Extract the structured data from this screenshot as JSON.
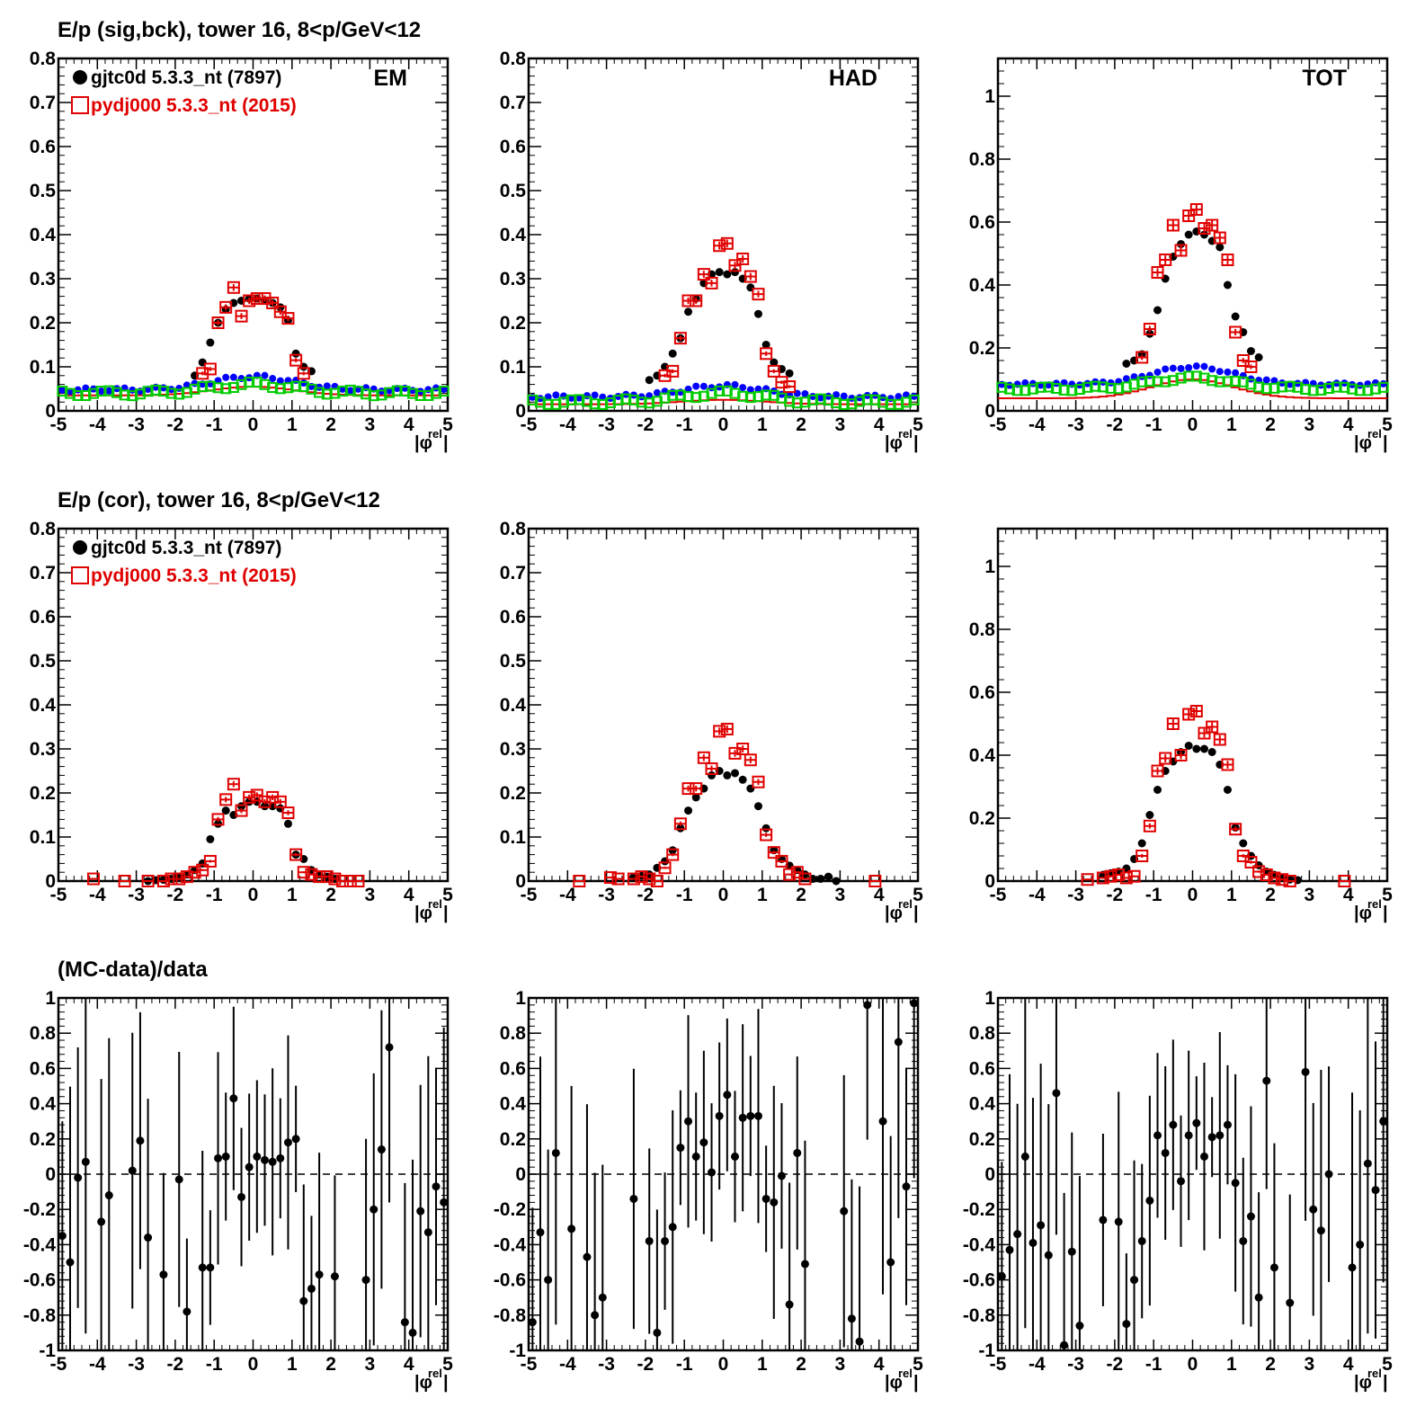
{
  "row_titles": {
    "r0": "E/p (sig,bck), tower 16,  8<p/GeV<12",
    "r1": "E/p (cor), tower 16,  8<p/GeV<12",
    "r2": "(MC-data)/data"
  },
  "legend": {
    "data_label": "gjtc0d 5.3.3_nt (7897)",
    "mc_label": "pydj000 5.3.3_nt (2015)"
  },
  "colors": {
    "data": "#000000",
    "mc": "#e00000",
    "background_data": "#0000ff",
    "background_mc": "#00cc00",
    "axis": "#000000"
  },
  "xlabel": "|φrel|",
  "chart_data": [
    {
      "id": "sb_em",
      "type": "scatter",
      "label": "EM",
      "xlim": [
        -5,
        5
      ],
      "ylim": [
        0,
        0.8
      ],
      "yticks": [
        0,
        0.1,
        0.2,
        0.3,
        0.4,
        0.5,
        0.6,
        0.7,
        0.8
      ],
      "xticks": [
        -5,
        -4,
        -3,
        -2,
        -1,
        0,
        1,
        2,
        3,
        4,
        5
      ],
      "series": [
        {
          "role": "data",
          "x": [
            -1.5,
            -1.3,
            -1.1,
            -0.9,
            -0.7,
            -0.5,
            -0.3,
            -0.1,
            0.1,
            0.3,
            0.5,
            0.7,
            0.9,
            1.1,
            1.3,
            1.5
          ],
          "y": [
            0.08,
            0.11,
            0.155,
            0.2,
            0.23,
            0.245,
            0.25,
            0.255,
            0.255,
            0.25,
            0.245,
            0.235,
            0.205,
            0.13,
            0.1,
            0.09
          ]
        },
        {
          "role": "mc",
          "x": [
            -1.3,
            -1.1,
            -0.9,
            -0.7,
            -0.5,
            -0.3,
            -0.1,
            0.1,
            0.3,
            0.5,
            0.7,
            0.9,
            1.1,
            1.3
          ],
          "y": [
            0.085,
            0.095,
            0.2,
            0.235,
            0.28,
            0.215,
            0.25,
            0.255,
            0.255,
            0.245,
            0.225,
            0.21,
            0.115,
            0.085
          ]
        }
      ]
    },
    {
      "id": "sb_had",
      "type": "scatter",
      "label": "HAD",
      "xlim": [
        -5,
        5
      ],
      "ylim": [
        0,
        0.8
      ],
      "yticks": [
        0,
        0.1,
        0.2,
        0.3,
        0.4,
        0.5,
        0.6,
        0.7,
        0.8
      ],
      "xticks": [
        -5,
        -4,
        -3,
        -2,
        -1,
        0,
        1,
        2,
        3,
        4,
        5
      ],
      "series": [
        {
          "role": "data",
          "x": [
            -1.9,
            -1.7,
            -1.5,
            -1.3,
            -1.1,
            -0.9,
            -0.7,
            -0.5,
            -0.3,
            -0.1,
            0.1,
            0.3,
            0.5,
            0.7,
            0.9,
            1.1,
            1.3,
            1.5,
            1.7
          ],
          "y": [
            0.07,
            0.08,
            0.1,
            0.13,
            0.165,
            0.225,
            0.255,
            0.29,
            0.31,
            0.315,
            0.31,
            0.315,
            0.3,
            0.28,
            0.22,
            0.15,
            0.11,
            0.095,
            0.085
          ]
        },
        {
          "role": "mc",
          "x": [
            -1.5,
            -1.3,
            -1.1,
            -0.9,
            -0.7,
            -0.5,
            -0.3,
            -0.1,
            0.1,
            0.3,
            0.5,
            0.7,
            0.9,
            1.1,
            1.3,
            1.5,
            1.7
          ],
          "y": [
            0.08,
            0.09,
            0.165,
            0.25,
            0.25,
            0.31,
            0.29,
            0.375,
            0.38,
            0.33,
            0.345,
            0.305,
            0.265,
            0.13,
            0.09,
            0.065,
            0.055
          ]
        }
      ]
    },
    {
      "id": "sb_tot",
      "type": "scatter",
      "label": "TOT",
      "xlim": [
        -5,
        5
      ],
      "ylim": [
        0,
        1.12
      ],
      "yticks": [
        0,
        0.2,
        0.4,
        0.6,
        0.8,
        1
      ],
      "xticks": [
        -5,
        -4,
        -3,
        -2,
        -1,
        0,
        1,
        2,
        3,
        4,
        5
      ],
      "series": [
        {
          "role": "data",
          "x": [
            -1.7,
            -1.5,
            -1.3,
            -1.1,
            -0.9,
            -0.7,
            -0.5,
            -0.3,
            -0.1,
            0.1,
            0.3,
            0.5,
            0.7,
            0.9,
            1.1,
            1.3,
            1.5,
            1.7
          ],
          "y": [
            0.15,
            0.16,
            0.18,
            0.245,
            0.32,
            0.42,
            0.49,
            0.53,
            0.56,
            0.57,
            0.56,
            0.54,
            0.52,
            0.4,
            0.3,
            0.25,
            0.19,
            0.17
          ]
        },
        {
          "role": "mc",
          "x": [
            -1.3,
            -1.1,
            -0.9,
            -0.7,
            -0.5,
            -0.3,
            -0.1,
            0.1,
            0.3,
            0.5,
            0.7,
            0.9,
            1.1,
            1.3,
            1.5
          ],
          "y": [
            0.17,
            0.26,
            0.44,
            0.48,
            0.59,
            0.51,
            0.62,
            0.64,
            0.58,
            0.59,
            0.55,
            0.48,
            0.25,
            0.16,
            0.14
          ]
        }
      ]
    },
    {
      "id": "cor_em",
      "type": "scatter",
      "xlim": [
        -5,
        5
      ],
      "ylim": [
        0,
        0.8
      ],
      "yticks": [
        0,
        0.1,
        0.2,
        0.3,
        0.4,
        0.5,
        0.6,
        0.7,
        0.8
      ],
      "xticks": [
        -5,
        -4,
        -3,
        -2,
        -1,
        0,
        1,
        2,
        3,
        4,
        5
      ],
      "series": [
        {
          "role": "data",
          "x": [
            -2.7,
            -2.5,
            -2.3,
            -2.1,
            -1.9,
            -1.7,
            -1.5,
            -1.3,
            -1.1,
            -0.9,
            -0.7,
            -0.5,
            -0.3,
            -0.1,
            0.1,
            0.3,
            0.5,
            0.7,
            0.9,
            1.1,
            1.3,
            1.5,
            1.7,
            1.9,
            2.1
          ],
          "y": [
            0.0,
            0.002,
            0.003,
            0.005,
            0.01,
            0.015,
            0.025,
            0.04,
            0.095,
            0.13,
            0.16,
            0.15,
            0.17,
            0.18,
            0.18,
            0.17,
            0.17,
            0.165,
            0.13,
            0.06,
            0.05,
            0.025,
            0.015,
            0.01,
            0.005
          ]
        },
        {
          "role": "mc",
          "x": [
            -4.1,
            -3.3,
            -2.7,
            -2.3,
            -2.1,
            -1.9,
            -1.7,
            -1.5,
            -1.3,
            -1.1,
            -0.9,
            -0.7,
            -0.5,
            -0.3,
            -0.1,
            0.1,
            0.3,
            0.5,
            0.7,
            0.9,
            1.1,
            1.3,
            1.5,
            1.7,
            1.9,
            2.1,
            2.3,
            2.5,
            2.7
          ],
          "y": [
            0.005,
            0.0,
            0.0,
            0.0,
            0.005,
            0.005,
            0.01,
            0.02,
            0.025,
            0.045,
            0.14,
            0.185,
            0.22,
            0.16,
            0.19,
            0.195,
            0.18,
            0.19,
            0.18,
            0.155,
            0.06,
            0.02,
            0.015,
            0.01,
            0.01,
            0.005,
            0.0,
            0.0,
            0.0
          ]
        }
      ]
    },
    {
      "id": "cor_had",
      "type": "scatter",
      "xlim": [
        -5,
        5
      ],
      "ylim": [
        0,
        0.8
      ],
      "yticks": [
        0,
        0.1,
        0.2,
        0.3,
        0.4,
        0.5,
        0.6,
        0.7,
        0.8
      ],
      "xticks": [
        -5,
        -4,
        -3,
        -2,
        -1,
        0,
        1,
        2,
        3,
        4,
        5
      ],
      "series": [
        {
          "role": "data",
          "x": [
            -2.3,
            -2.1,
            -1.9,
            -1.7,
            -1.5,
            -1.3,
            -1.1,
            -0.9,
            -0.7,
            -0.5,
            -0.3,
            -0.1,
            0.1,
            0.3,
            0.5,
            0.7,
            0.9,
            1.1,
            1.3,
            1.5,
            1.7,
            1.9,
            2.1,
            2.3,
            2.5,
            2.7,
            2.9
          ],
          "y": [
            0.01,
            0.012,
            0.015,
            0.03,
            0.045,
            0.07,
            0.12,
            0.16,
            0.19,
            0.21,
            0.24,
            0.25,
            0.24,
            0.245,
            0.23,
            0.21,
            0.17,
            0.12,
            0.07,
            0.05,
            0.035,
            0.025,
            0.015,
            0.005,
            0.005,
            0.01,
            0.0
          ]
        },
        {
          "role": "mc",
          "x": [
            -3.7,
            -2.9,
            -2.7,
            -2.3,
            -2.1,
            -1.9,
            -1.7,
            -1.5,
            -1.3,
            -1.1,
            -0.9,
            -0.7,
            -0.5,
            -0.3,
            -0.1,
            0.1,
            0.3,
            0.5,
            0.7,
            0.9,
            1.1,
            1.3,
            1.5,
            1.7,
            1.9,
            2.1,
            3.9
          ],
          "y": [
            0.0,
            0.008,
            0.005,
            0.005,
            0.01,
            0.005,
            0.0,
            0.03,
            0.06,
            0.13,
            0.21,
            0.21,
            0.28,
            0.255,
            0.34,
            0.345,
            0.29,
            0.3,
            0.275,
            0.225,
            0.105,
            0.065,
            0.045,
            0.015,
            0.02,
            0.005,
            0.0
          ]
        }
      ]
    },
    {
      "id": "cor_tot",
      "type": "scatter",
      "xlim": [
        -5,
        5
      ],
      "ylim": [
        0,
        1.12
      ],
      "yticks": [
        0,
        0.2,
        0.4,
        0.6,
        0.8,
        1
      ],
      "xticks": [
        -5,
        -4,
        -3,
        -2,
        -1,
        0,
        1,
        2,
        3,
        4,
        5
      ],
      "series": [
        {
          "role": "data",
          "x": [
            -2.3,
            -2.1,
            -1.9,
            -1.7,
            -1.5,
            -1.3,
            -1.1,
            -0.9,
            -0.7,
            -0.5,
            -0.3,
            -0.1,
            0.1,
            0.3,
            0.5,
            0.7,
            0.9,
            1.1,
            1.3,
            1.5,
            1.7,
            1.9,
            2.1,
            2.3,
            2.5,
            2.7
          ],
          "y": [
            0.02,
            0.025,
            0.03,
            0.04,
            0.07,
            0.12,
            0.21,
            0.29,
            0.35,
            0.38,
            0.41,
            0.43,
            0.42,
            0.42,
            0.41,
            0.37,
            0.29,
            0.17,
            0.12,
            0.08,
            0.05,
            0.03,
            0.02,
            0.01,
            0.005,
            0.003
          ]
        },
        {
          "role": "mc",
          "x": [
            -2.7,
            -2.3,
            -2.1,
            -1.9,
            -1.7,
            -1.5,
            -1.3,
            -1.1,
            -0.9,
            -0.7,
            -0.5,
            -0.3,
            -0.1,
            0.1,
            0.3,
            0.5,
            0.7,
            0.9,
            1.1,
            1.3,
            1.5,
            1.7,
            1.9,
            2.1,
            2.3,
            2.5,
            3.9
          ],
          "y": [
            0.005,
            0.01,
            0.015,
            0.02,
            0.01,
            0.015,
            0.08,
            0.175,
            0.35,
            0.39,
            0.5,
            0.4,
            0.53,
            0.54,
            0.47,
            0.49,
            0.45,
            0.37,
            0.165,
            0.08,
            0.06,
            0.03,
            0.02,
            0.01,
            0.005,
            0.0,
            0.0
          ]
        }
      ]
    },
    {
      "id": "ratio_em",
      "type": "scatter",
      "xlim": [
        -5,
        5
      ],
      "ylim": [
        -1,
        1
      ],
      "yticks": [
        -1,
        -0.8,
        -0.6,
        -0.4,
        -0.2,
        0,
        0.2,
        0.4,
        0.6,
        0.8,
        1
      ],
      "xticks": [
        -5,
        -4,
        -3,
        -2,
        -1,
        0,
        1,
        2,
        3,
        4,
        5
      ],
      "series": [
        {
          "role": "ratio",
          "x": [
            -4.9,
            -4.7,
            -4.5,
            -4.3,
            -3.9,
            -3.7,
            -3.1,
            -2.9,
            -2.7,
            -2.3,
            -1.9,
            -1.7,
            -1.3,
            -1.1,
            -0.9,
            -0.7,
            -0.5,
            -0.3,
            -0.1,
            0.1,
            0.3,
            0.5,
            0.7,
            0.9,
            1.1,
            1.3,
            1.5,
            1.7,
            2.1,
            2.9,
            3.1,
            3.3,
            3.5,
            3.9,
            4.1,
            4.3,
            4.5,
            4.7,
            4.9
          ],
          "y": [
            -0.35,
            -0.5,
            -0.02,
            0.07,
            -0.27,
            -0.12,
            0.02,
            0.19,
            -0.36,
            -0.57,
            -0.03,
            -0.78,
            -0.53,
            -0.53,
            0.09,
            0.1,
            0.43,
            -0.13,
            0.04,
            0.1,
            0.08,
            0.07,
            0.09,
            0.18,
            0.2,
            -0.72,
            -0.65,
            -0.57,
            -0.58,
            -0.6,
            -0.2,
            0.14,
            0.72,
            -0.84,
            -0.9,
            -0.21,
            -0.33,
            -0.07,
            -0.16
          ]
        }
      ]
    },
    {
      "id": "ratio_had",
      "type": "scatter",
      "xlim": [
        -5,
        5
      ],
      "ylim": [
        -1,
        1
      ],
      "yticks": [
        -1,
        -0.8,
        -0.6,
        -0.4,
        -0.2,
        0,
        0.2,
        0.4,
        0.6,
        0.8,
        1
      ],
      "xticks": [
        -5,
        -4,
        -3,
        -2,
        -1,
        0,
        1,
        2,
        3,
        4,
        5
      ],
      "series": [
        {
          "role": "ratio",
          "x": [
            -4.9,
            -4.7,
            -4.5,
            -4.3,
            -3.9,
            -3.5,
            -3.3,
            -3.1,
            -2.3,
            -1.9,
            -1.7,
            -1.5,
            -1.3,
            -1.1,
            -0.9,
            -0.7,
            -0.5,
            -0.3,
            -0.1,
            0.1,
            0.3,
            0.5,
            0.7,
            0.9,
            1.1,
            1.3,
            1.5,
            1.7,
            1.9,
            2.1,
            3.1,
            3.3,
            3.5,
            3.7,
            4.1,
            4.3,
            4.5,
            4.7,
            4.9
          ],
          "y": [
            -0.84,
            -0.33,
            -0.6,
            0.12,
            -0.31,
            -0.47,
            -0.8,
            -0.7,
            -0.14,
            -0.38,
            -0.9,
            -0.38,
            -0.3,
            0.15,
            0.3,
            0.1,
            0.18,
            0.01,
            0.33,
            0.45,
            0.1,
            0.32,
            0.33,
            0.33,
            -0.14,
            -0.16,
            -0.01,
            -0.74,
            0.12,
            -0.51,
            -0.21,
            -0.82,
            -0.95,
            0.96,
            0.3,
            -0.5,
            0.75,
            -0.07,
            0.97
          ]
        }
      ]
    },
    {
      "id": "ratio_tot",
      "type": "scatter",
      "xlim": [
        -5,
        5
      ],
      "ylim": [
        -1,
        1
      ],
      "yticks": [
        -1,
        -0.8,
        -0.6,
        -0.4,
        -0.2,
        0,
        0.2,
        0.4,
        0.6,
        0.8,
        1
      ],
      "xticks": [
        -5,
        -4,
        -3,
        -2,
        -1,
        0,
        1,
        2,
        3,
        4,
        5
      ],
      "series": [
        {
          "role": "ratio",
          "x": [
            -4.9,
            -4.7,
            -4.5,
            -4.3,
            -4.1,
            -3.9,
            -3.7,
            -3.5,
            -3.3,
            -3.1,
            -2.9,
            -2.3,
            -1.9,
            -1.7,
            -1.5,
            -1.3,
            -1.1,
            -0.9,
            -0.7,
            -0.5,
            -0.3,
            -0.1,
            0.1,
            0.3,
            0.5,
            0.7,
            0.9,
            1.1,
            1.3,
            1.5,
            1.7,
            1.9,
            2.1,
            2.5,
            2.9,
            3.1,
            3.3,
            3.5,
            4.1,
            4.3,
            4.5,
            4.7,
            4.9
          ],
          "y": [
            -0.58,
            -0.43,
            -0.34,
            0.1,
            -0.39,
            -0.29,
            -0.46,
            0.46,
            -0.97,
            -0.44,
            -0.86,
            -0.26,
            -0.27,
            -0.85,
            -0.6,
            -0.38,
            -0.15,
            0.22,
            0.12,
            0.28,
            -0.04,
            0.22,
            0.29,
            0.1,
            0.21,
            0.22,
            0.28,
            -0.05,
            -0.38,
            -0.24,
            -0.7,
            0.53,
            -0.53,
            -0.73,
            0.58,
            -0.2,
            -0.32,
            0.0,
            -0.53,
            -0.4,
            0.06,
            -0.09,
            0.3
          ]
        }
      ]
    }
  ]
}
